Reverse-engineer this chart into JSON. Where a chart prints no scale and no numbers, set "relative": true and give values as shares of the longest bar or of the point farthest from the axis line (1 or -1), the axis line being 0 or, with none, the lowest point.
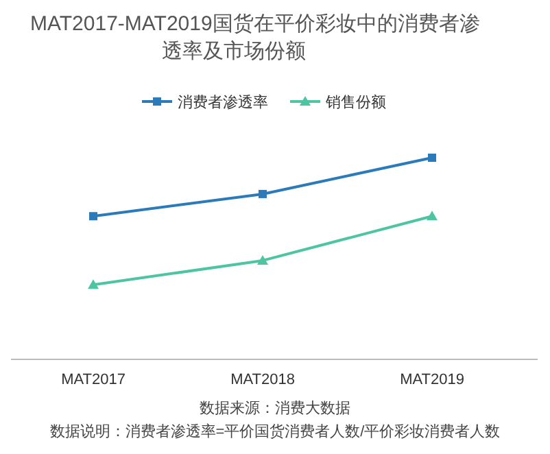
{
  "chart_data": {
    "type": "line",
    "title": "MAT2017-MAT2019国货在平价彩妆中的消费者渗透率及市场份额",
    "relative": true,
    "categories": [
      "MAT2017",
      "MAT2018",
      "MAT2019"
    ],
    "series": [
      {
        "name": "消费者渗透率",
        "color": "#2b7bba",
        "marker": "square",
        "values": [
          0.71,
          0.82,
          1.0
        ]
      },
      {
        "name": "销售份额",
        "color": "#4dc4a2",
        "marker": "triangle",
        "values": [
          0.37,
          0.49,
          0.71
        ]
      }
    ],
    "legend": "top",
    "annotations": [
      "数据来源：消费大数据",
      "数据说明：消费者渗透率=平价国货消费者人数/平价彩妆消费者人数"
    ]
  }
}
